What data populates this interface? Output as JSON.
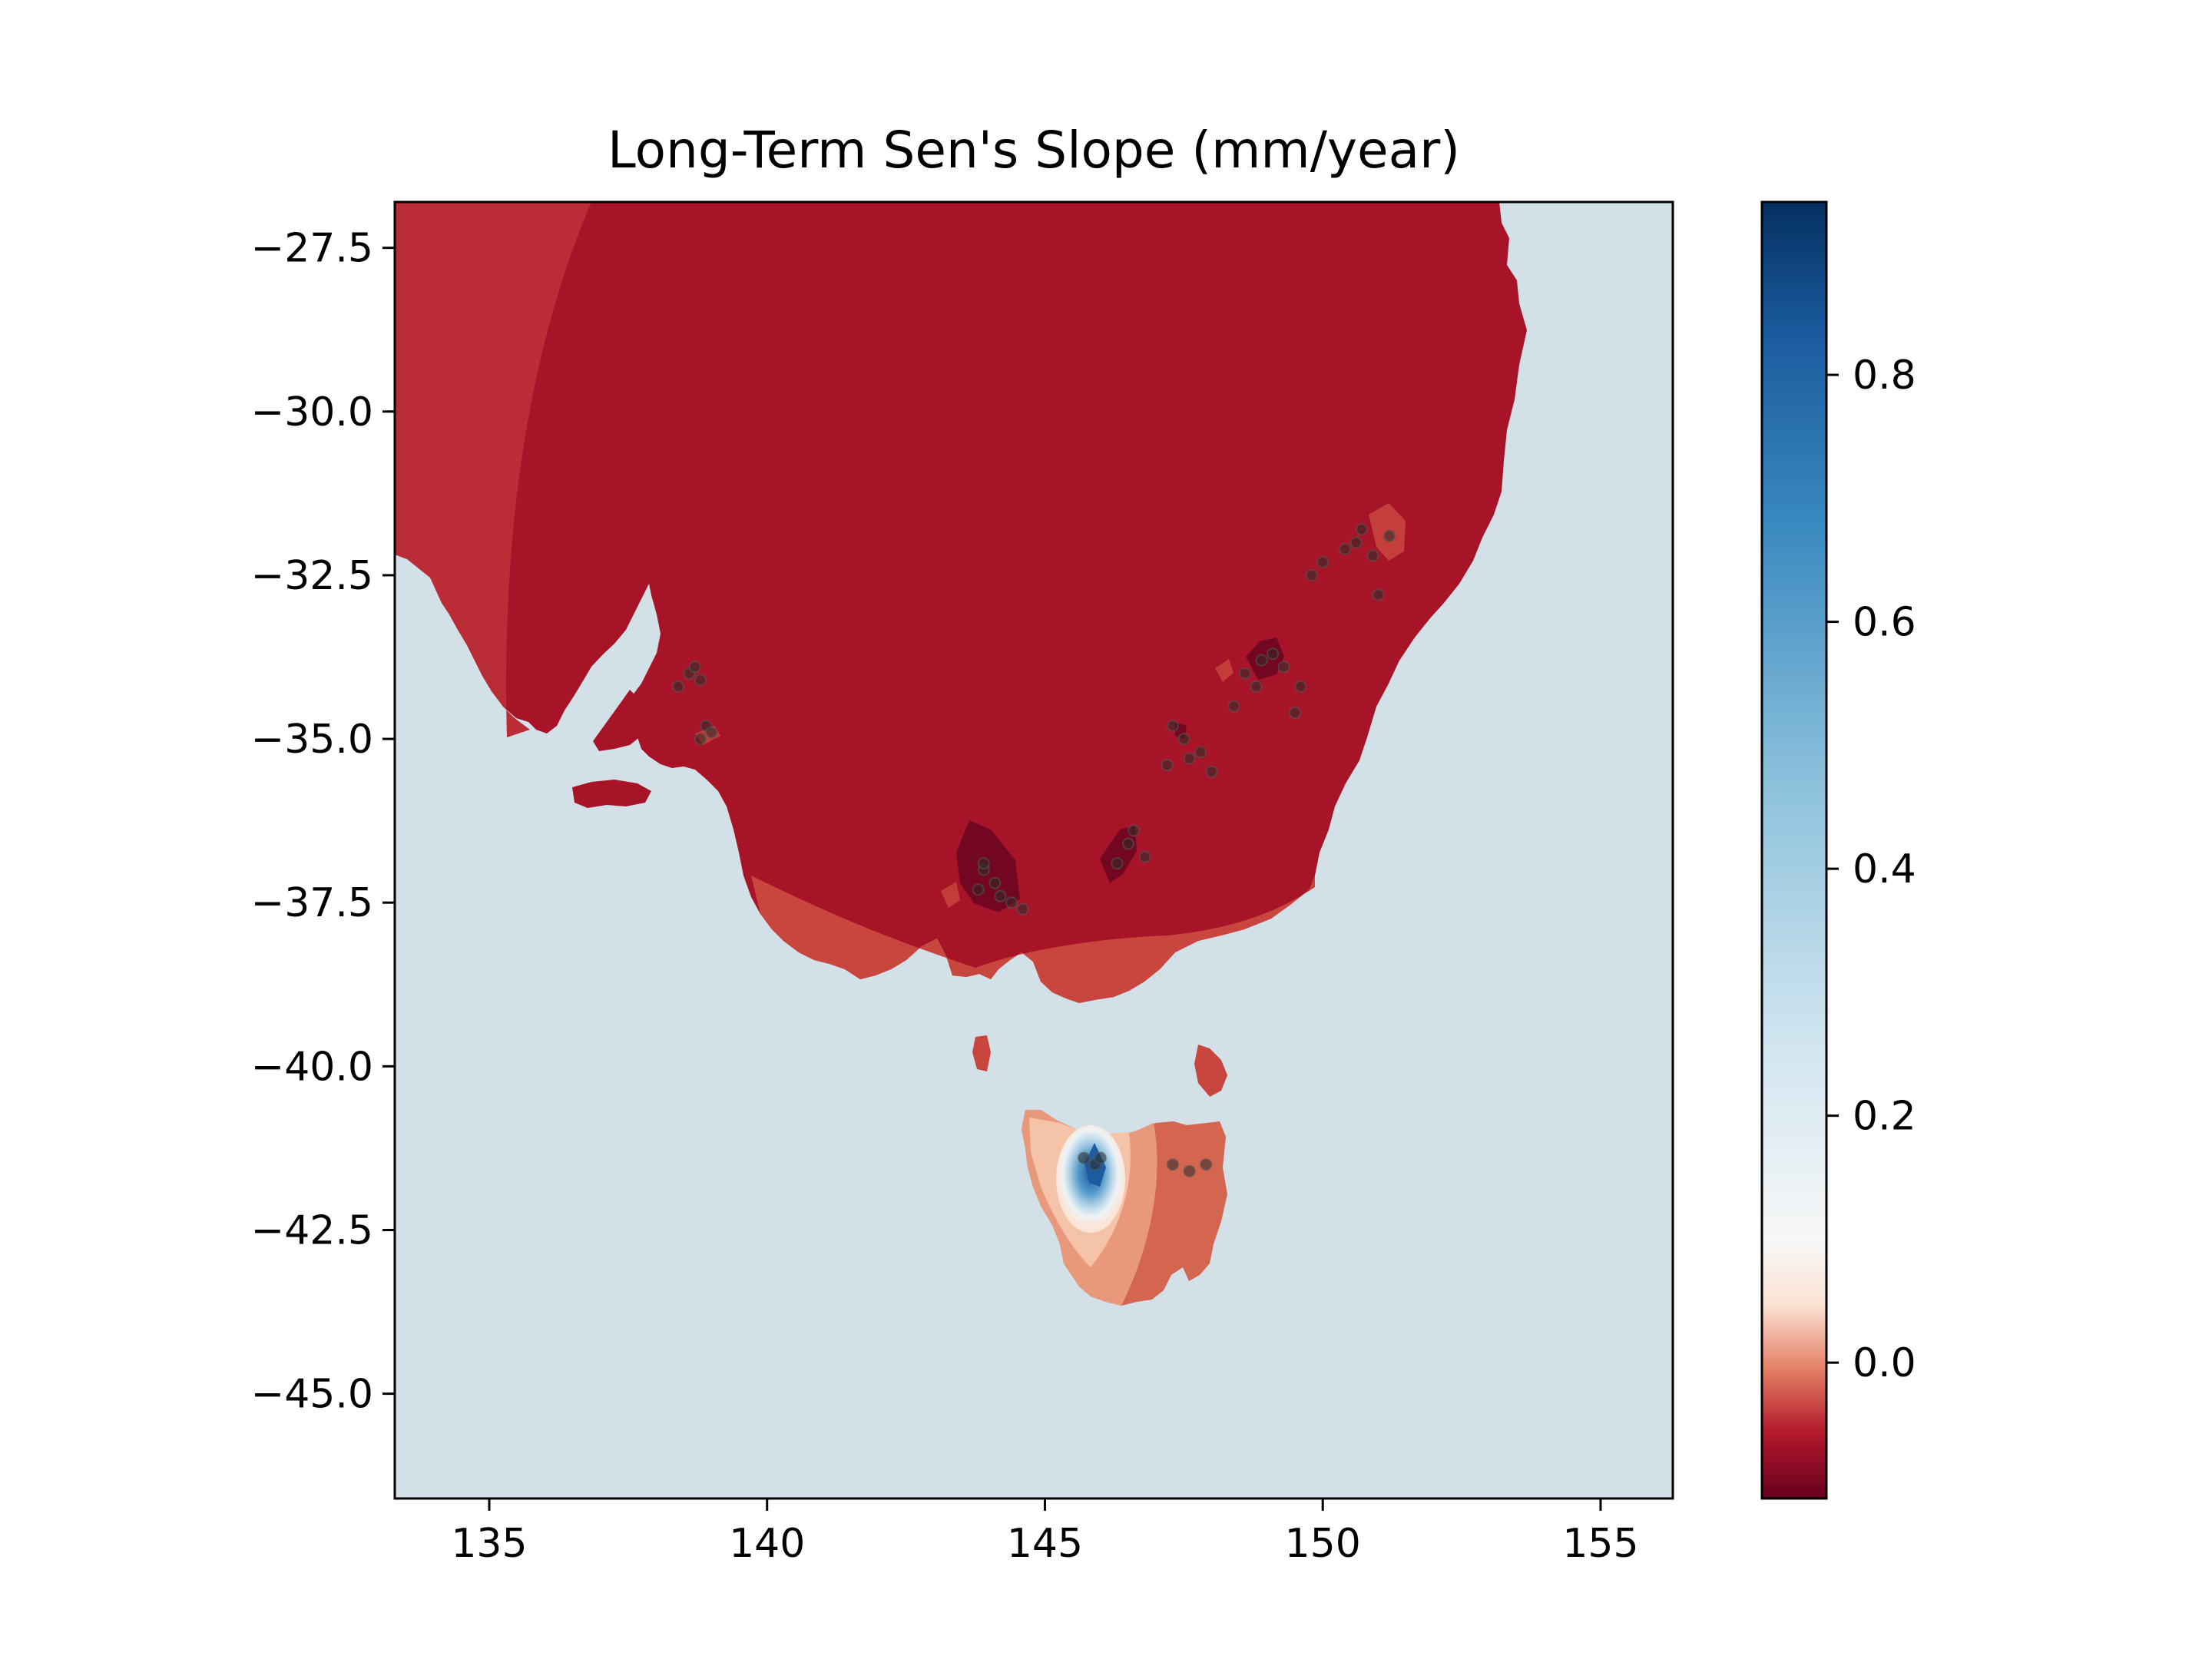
{
  "chart_data": {
    "type": "map",
    "title": "Long-Term Sen's Slope (mm/year)",
    "xlabel": "",
    "ylabel": "",
    "xlim": [
      133.3,
      156.3
    ],
    "ylim": [
      -46.6,
      -26.8
    ],
    "x_ticks": [
      135,
      140,
      145,
      150,
      155
    ],
    "x_tick_labels": [
      "135",
      "140",
      "145",
      "150",
      "155"
    ],
    "y_ticks": [
      -27.5,
      -30.0,
      -32.5,
      -35.0,
      -37.5,
      -40.0,
      -42.5,
      -45.0
    ],
    "y_tick_labels": [
      "−27.5",
      "−30.0",
      "−32.5",
      "−35.0",
      "−37.5",
      "−40.0",
      "−42.5",
      "−45.0"
    ],
    "colorbar": {
      "cmap": "RdBu",
      "range": [
        -0.11,
        0.94
      ],
      "ticks": [
        0.0,
        0.2,
        0.4,
        0.6,
        0.8
      ],
      "tick_labels": [
        "0.0",
        "0.2",
        "0.4",
        "0.6",
        "0.8"
      ]
    },
    "colors": {
      "ocean": "#d3e0e7",
      "land_dominant": "#a71428",
      "land_west_band": "#bb2d36",
      "coast_band": "#c9463f",
      "cluster_dark": "#6e0620"
    },
    "stations": [
      [
        138.6,
        -34.0
      ],
      [
        138.8,
        -34.1
      ],
      [
        138.7,
        -33.9
      ],
      [
        138.4,
        -34.2
      ],
      [
        138.9,
        -34.8
      ],
      [
        139.0,
        -34.9
      ],
      [
        138.8,
        -35.0
      ],
      [
        143.9,
        -37.0
      ],
      [
        143.8,
        -37.3
      ],
      [
        144.1,
        -37.2
      ],
      [
        144.2,
        -37.4
      ],
      [
        143.9,
        -36.9
      ],
      [
        144.4,
        -37.5
      ],
      [
        144.6,
        -37.6
      ],
      [
        146.3,
        -36.9
      ],
      [
        146.5,
        -36.6
      ],
      [
        146.6,
        -36.4
      ],
      [
        146.8,
        -36.8
      ],
      [
        147.2,
        -35.4
      ],
      [
        147.6,
        -35.3
      ],
      [
        147.8,
        -35.2
      ],
      [
        148.0,
        -35.5
      ],
      [
        147.3,
        -34.8
      ],
      [
        147.5,
        -35.0
      ],
      [
        148.4,
        -34.5
      ],
      [
        148.6,
        -34.0
      ],
      [
        148.9,
        -33.8
      ],
      [
        149.1,
        -33.7
      ],
      [
        149.3,
        -33.9
      ],
      [
        148.8,
        -34.2
      ],
      [
        149.5,
        -34.6
      ],
      [
        149.6,
        -34.2
      ],
      [
        149.8,
        -32.5
      ],
      [
        150.0,
        -32.3
      ],
      [
        150.4,
        -32.1
      ],
      [
        150.6,
        -32.0
      ],
      [
        150.9,
        -32.2
      ],
      [
        151.2,
        -31.9
      ],
      [
        150.7,
        -31.8
      ],
      [
        151.0,
        -32.8
      ],
      [
        145.7,
        -41.4
      ],
      [
        145.9,
        -41.5
      ],
      [
        146.0,
        -41.4
      ],
      [
        147.3,
        -41.5
      ],
      [
        147.6,
        -41.6
      ],
      [
        147.9,
        -41.5
      ]
    ]
  }
}
